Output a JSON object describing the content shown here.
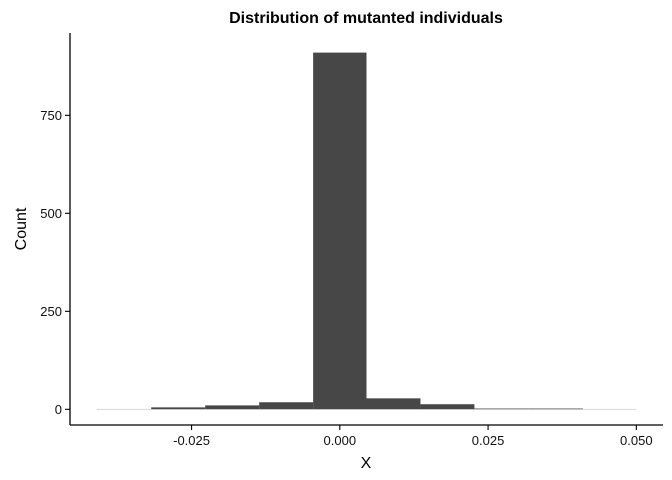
{
  "chart_data": {
    "type": "bar",
    "title": "Distribution of mutanted individuals",
    "xlabel": "X",
    "ylabel": "Count",
    "xlim": [
      -0.0455,
      0.0545
    ],
    "ylim": [
      -40,
      960
    ],
    "xticks": [
      -0.025,
      0.0,
      0.025,
      0.05
    ],
    "xtick_labels": [
      "-0.025",
      "0.000",
      "0.025",
      "0.050"
    ],
    "yticks": [
      0,
      250,
      500,
      750
    ],
    "ytick_labels": [
      "0",
      "250",
      "500",
      "750"
    ],
    "bins": [
      {
        "x0": -0.041,
        "x1": -0.0318,
        "count": 1
      },
      {
        "x0": -0.0318,
        "x1": -0.0227,
        "count": 5
      },
      {
        "x0": -0.0227,
        "x1": -0.0136,
        "count": 10
      },
      {
        "x0": -0.0136,
        "x1": -0.0045,
        "count": 18
      },
      {
        "x0": -0.0045,
        "x1": 0.0045,
        "count": 910
      },
      {
        "x0": 0.0045,
        "x1": 0.0136,
        "count": 28
      },
      {
        "x0": 0.0136,
        "x1": 0.0227,
        "count": 13
      },
      {
        "x0": 0.0227,
        "x1": 0.0318,
        "count": 2
      },
      {
        "x0": 0.0318,
        "x1": 0.041,
        "count": 2
      },
      {
        "x0": 0.041,
        "x1": 0.05,
        "count": 1
      }
    ],
    "bar_color": "#474747",
    "grid": false,
    "legend": "none"
  }
}
